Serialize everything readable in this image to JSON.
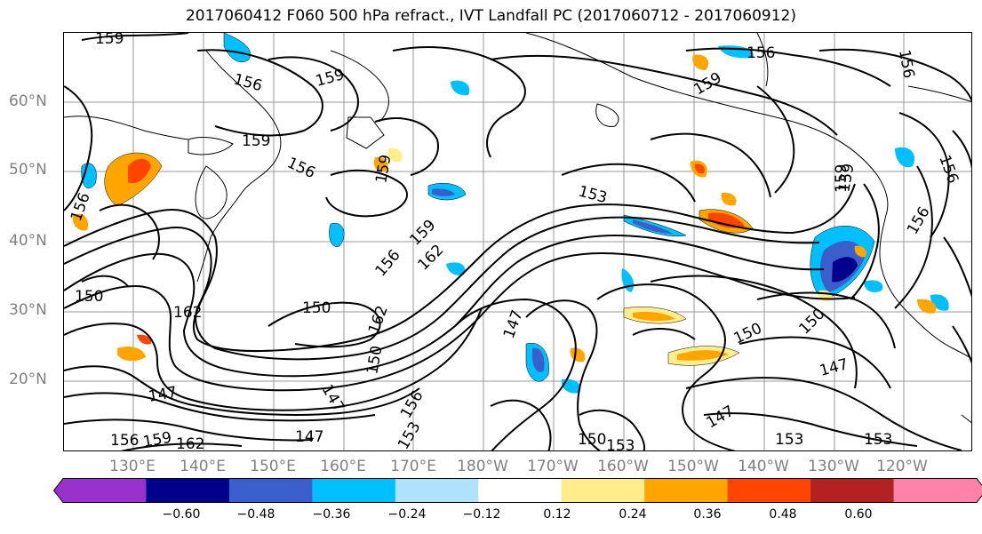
{
  "title": "2017060412 F060 500 hPa refract., IVT Landfall PC (2017060712 - 2017060912)",
  "map": {
    "lat_labels": [
      "60°N",
      "50°N",
      "40°N",
      "30°N",
      "20°N"
    ],
    "lon_labels": [
      "130°E",
      "140°E",
      "150°E",
      "160°E",
      "170°E",
      "180°W",
      "170°W",
      "160°W",
      "150°W",
      "140°W",
      "130°W",
      "120°W"
    ],
    "contour_labels": [
      "159",
      "156",
      "159",
      "159",
      "156",
      "159",
      "156",
      "153",
      "159",
      "150",
      "162",
      "159",
      "156",
      "147",
      "150",
      "150",
      "147",
      "147",
      "156",
      "153",
      "150",
      "153",
      "153",
      "147",
      "156",
      "159",
      "162",
      "156",
      "156",
      "159",
      "156",
      "156",
      "150",
      "162",
      "159",
      "147",
      "153",
      "150",
      "147",
      "162"
    ],
    "land_color": "#000000",
    "contour_color": "#000000"
  },
  "colorbar": {
    "tick_labels": [
      "−0.60",
      "−0.48",
      "−0.36",
      "−0.24",
      "−0.12",
      "0.12",
      "0.24",
      "0.36",
      "0.48",
      "0.60"
    ],
    "colors": [
      "#9932cc",
      "#00008b",
      "#3a5fcd",
      "#00bfff",
      "#b0e2ff",
      "#ffffff",
      "#ffec8b",
      "#ffa500",
      "#ff4500",
      "#b22222",
      "#ff82ab"
    ]
  }
}
